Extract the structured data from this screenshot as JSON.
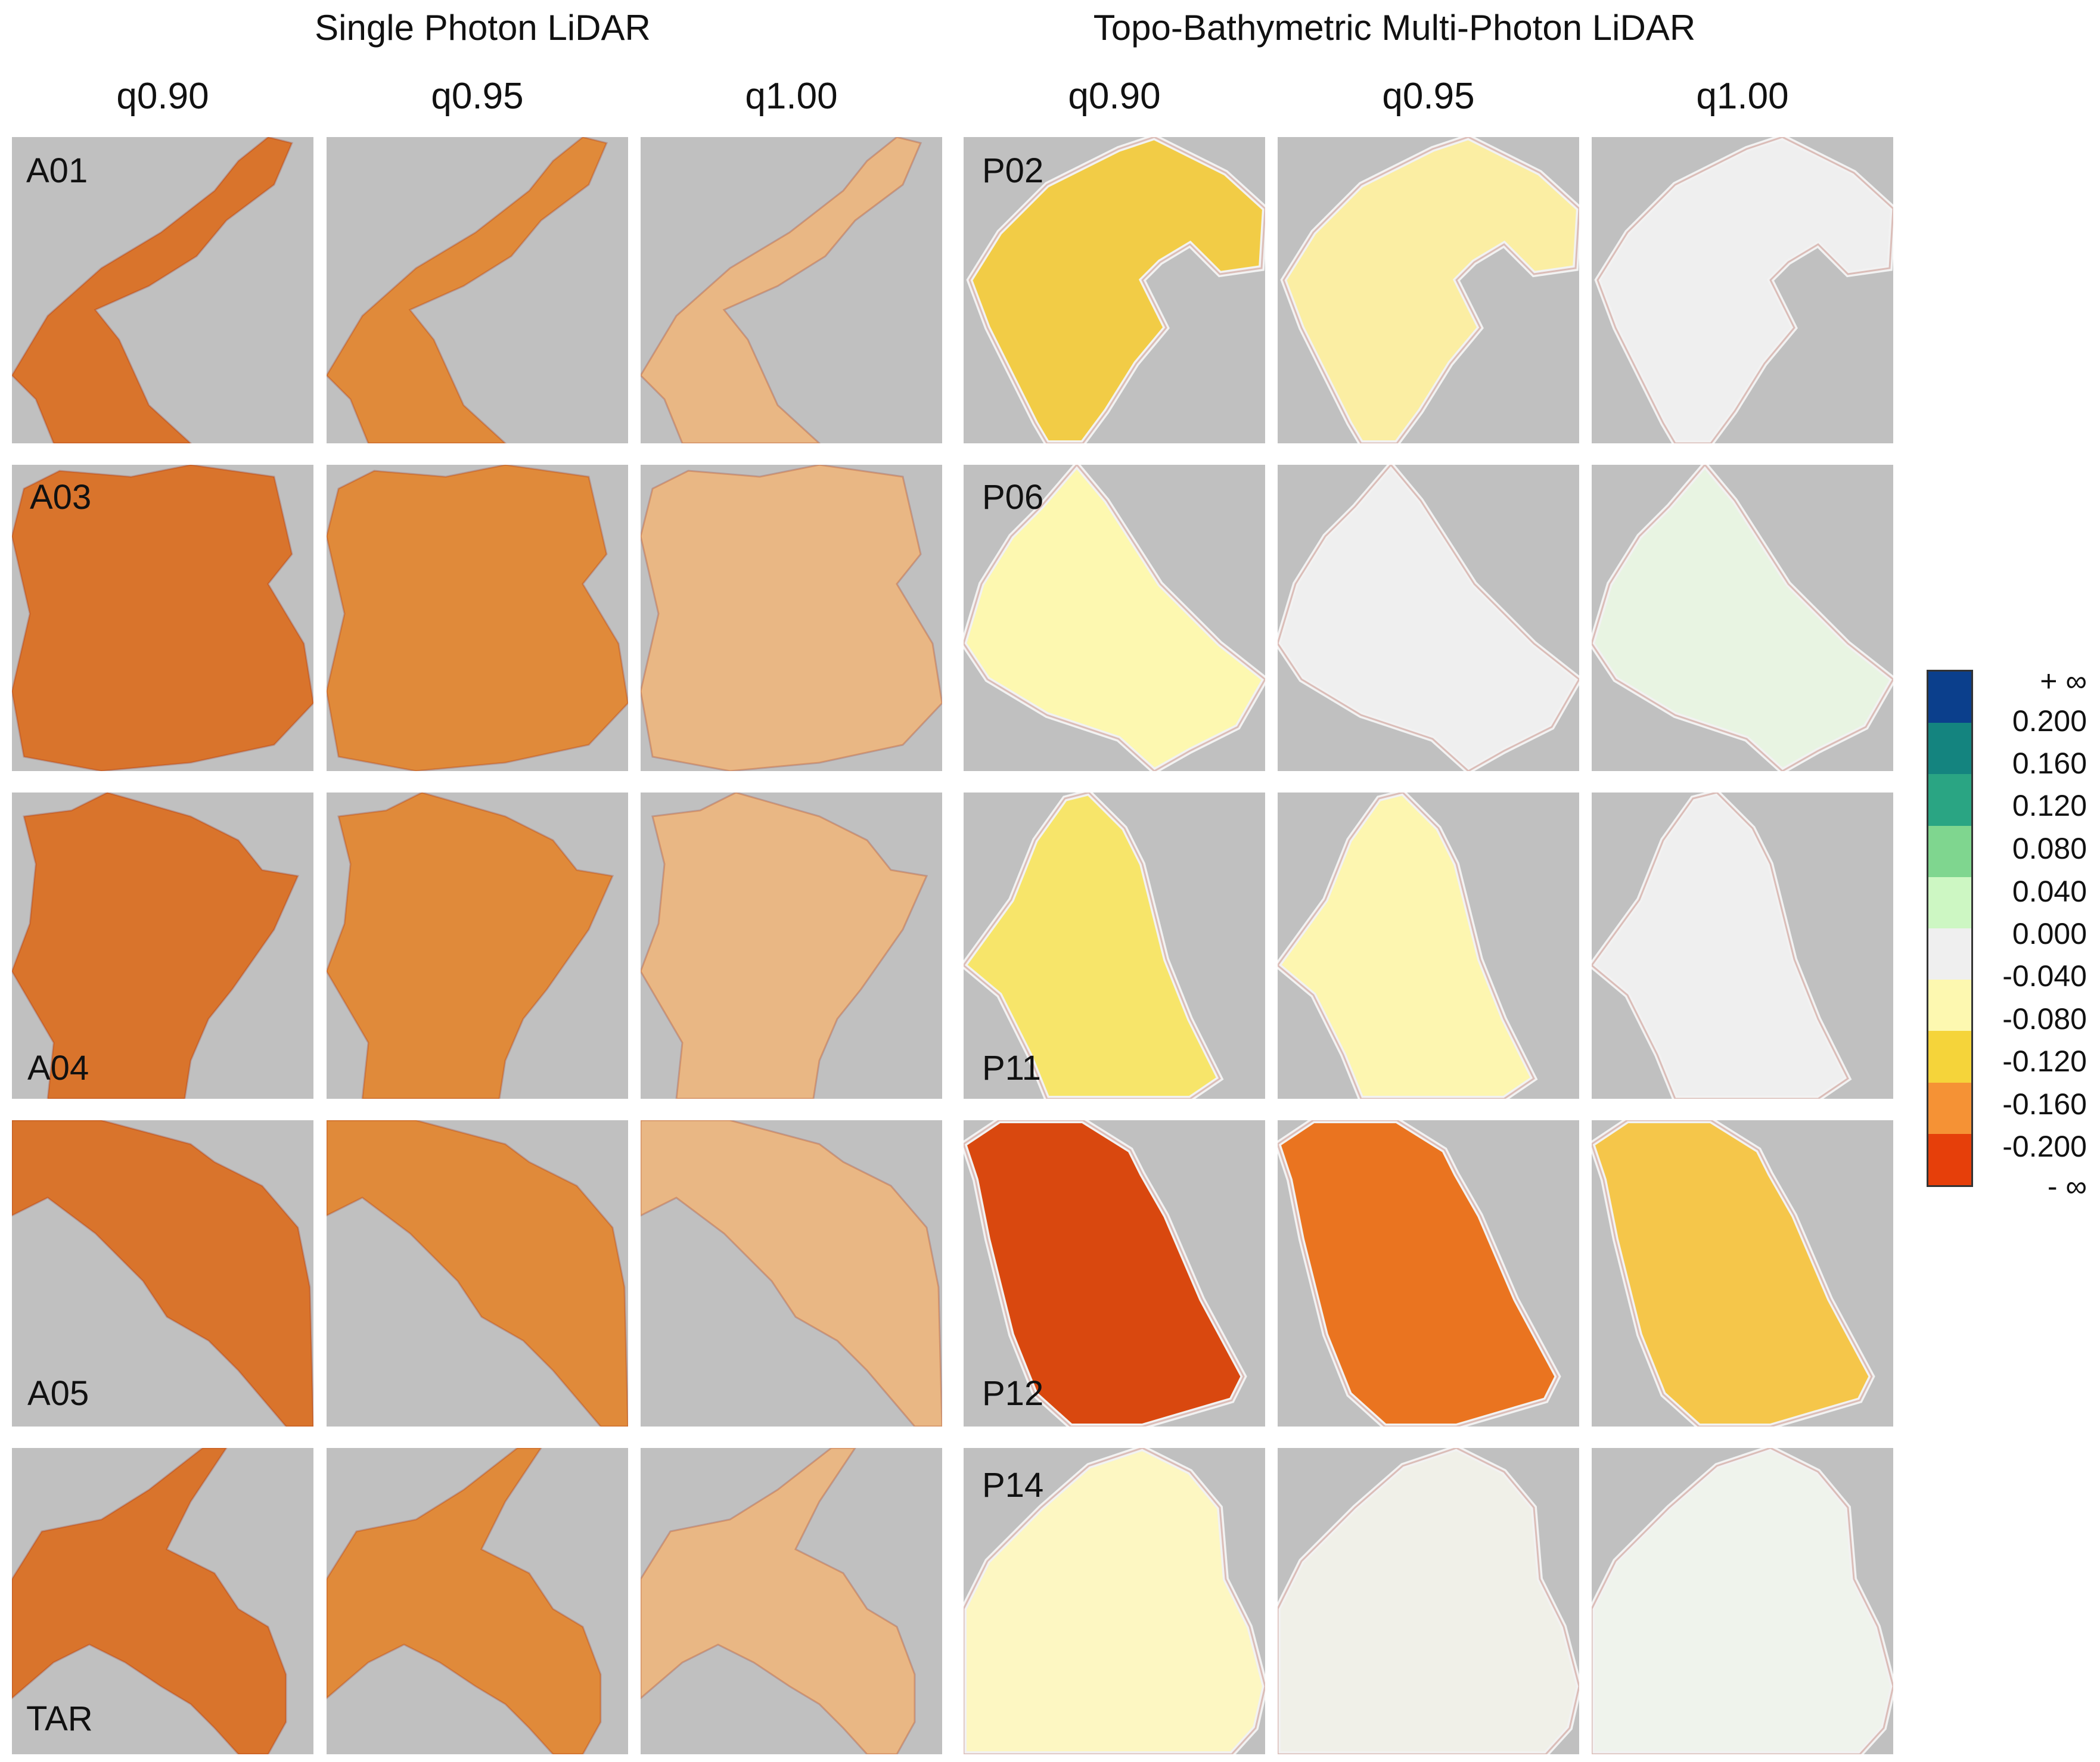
{
  "headers": {
    "single_photon": "Single Photon LiDAR",
    "multi_photon": "Topo-Bathymetric Multi-Photon LiDAR"
  },
  "columns": {
    "single_photon": [
      "q0.90",
      "q0.95",
      "q1.00"
    ],
    "multi_photon": [
      "q0.90",
      "q0.95",
      "q1.00"
    ]
  },
  "sites": {
    "single_photon": [
      "A01",
      "A03",
      "A04",
      "A05",
      "TAR"
    ],
    "multi_photon": [
      "P02",
      "P06",
      "P11",
      "P12",
      "P14"
    ]
  },
  "colorbar": {
    "labels": [
      "+ ∞",
      "0.200",
      "0.160",
      "0.120",
      "0.080",
      "0.040",
      "0.000",
      "-0.040",
      "-0.080",
      "-0.120",
      "-0.160",
      "-0.200",
      "- ∞"
    ],
    "colors": [
      "#0b3f8c",
      "#14847f",
      "#2aa583",
      "#7fd68f",
      "#cdf7c3",
      "#efefef",
      "#fdf8b0",
      "#f5d43a",
      "#f59235",
      "#e63f0a",
      "#9c0c09"
    ]
  },
  "colors": {
    "background": "#c0c0c0",
    "single_q090": "#d9742c",
    "single_q095": "#e08a3a",
    "single_q100": "#e9b784",
    "p02_q090": "#f2cc46",
    "p02_q095": "#fbeea3",
    "p02_q100": "#efefef",
    "p06_q090": "#fdf8b0",
    "p06_q095": "#efefef",
    "p06_q100": "#e8f4e2",
    "p11_q090": "#f7e56a",
    "p11_q095": "#fdf6b0",
    "p11_q100": "#efefef",
    "p12_q090": "#d9480f",
    "p12_q095": "#ea7420",
    "p12_q100": "#f5c64a",
    "p14_q090": "#fdf7c2",
    "p14_q095": "#f0f0e8",
    "p14_q100": "#eff3ec"
  }
}
